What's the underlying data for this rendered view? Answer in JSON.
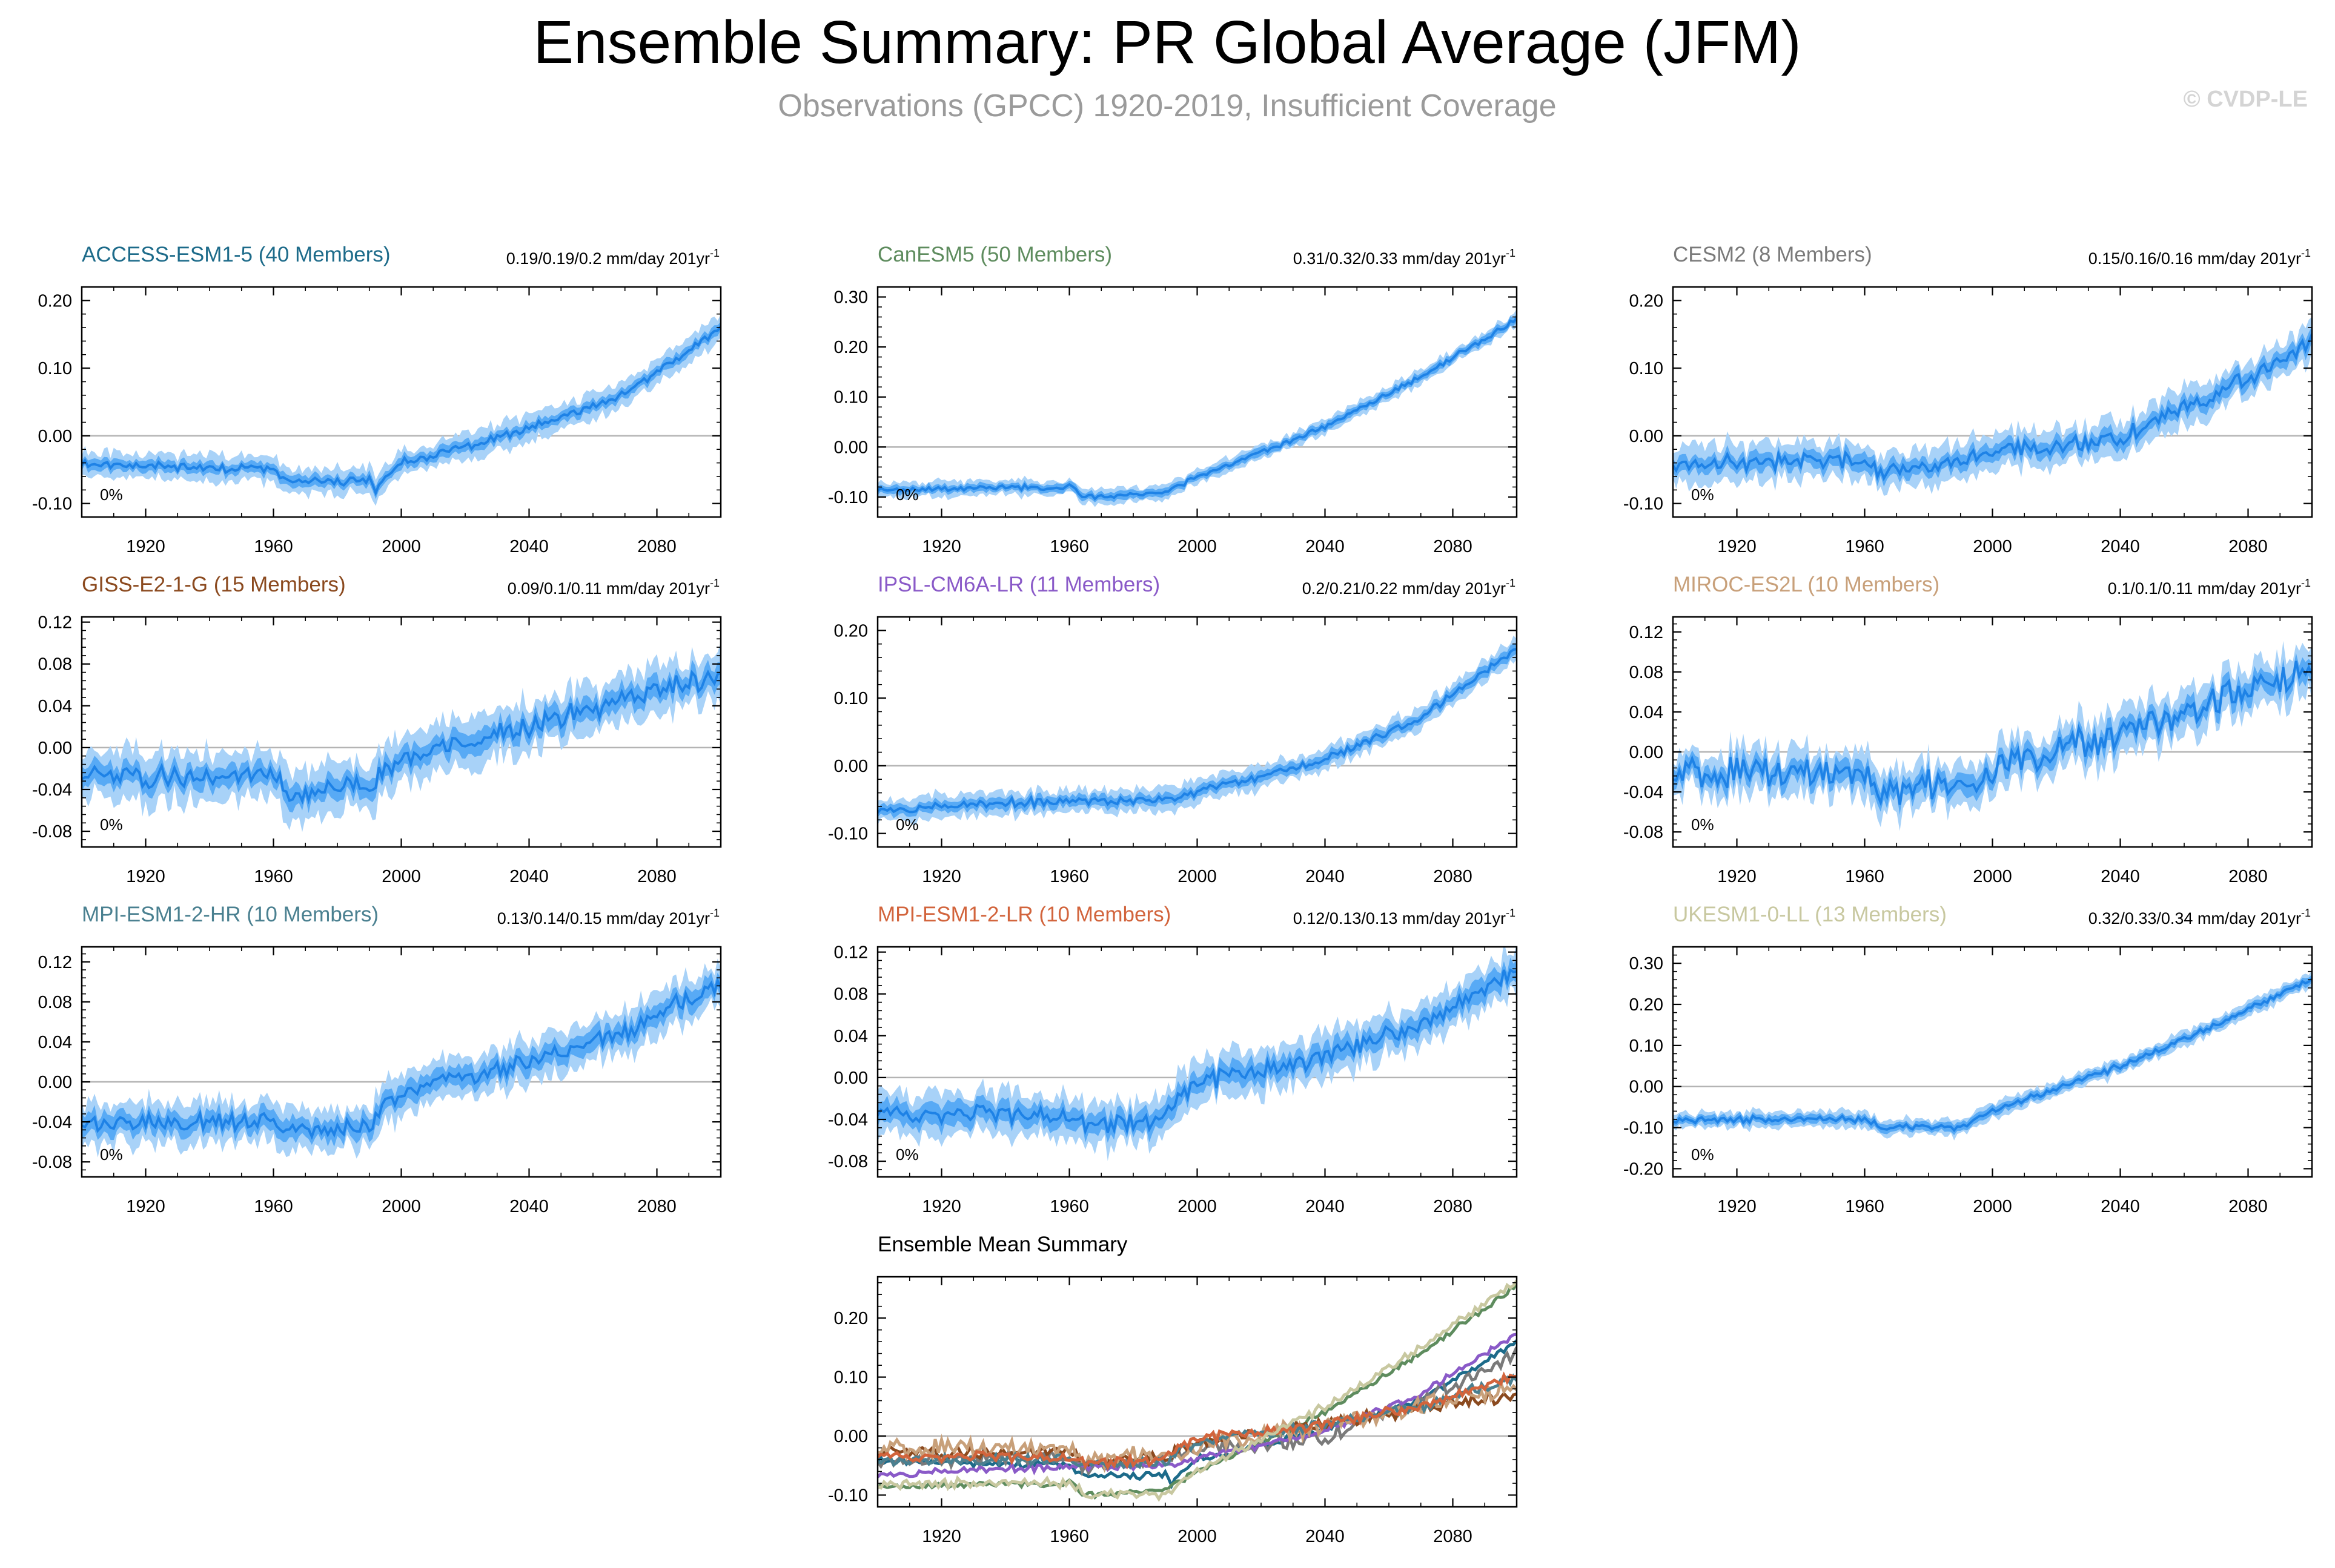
{
  "figure": {
    "title": "Ensemble Summary: PR Global Average (JFM)",
    "subtitle": "Observations (GPCC) 1920-2019, Insufficient Coverage",
    "watermark": "© CVDP-LE"
  },
  "colors": {
    "band_outer": "#a8d2f8",
    "band_inner": "#58aaf5",
    "mean_line": "#1e82e6",
    "zero_line": "#b4b4b4",
    "axis": "#000000"
  },
  "chart_data": [
    {
      "type": "area",
      "title": "ACCESS-ESM1-5 (40 Members)",
      "title_color": "#1d6b8a",
      "trend_label": "0.19/0.19/0.2 mm/day 201yr",
      "trend_sup": "-1",
      "pct_label": "0%",
      "x_range": [
        1900,
        2100
      ],
      "ylim": [
        -0.12,
        0.22
      ],
      "yticks": [
        -0.1,
        0.0,
        0.1,
        0.2
      ],
      "ytick_labels": [
        "-0.10",
        "0.00",
        "0.10",
        "0.20"
      ],
      "xticks": [
        1920,
        1960,
        2000,
        2040,
        2080
      ],
      "xtick_labels": [
        "1920",
        "1960",
        "2000",
        "2040",
        "2080"
      ],
      "mean_knots": [
        [
          1900,
          -0.04
        ],
        [
          1960,
          -0.05
        ],
        [
          1965,
          -0.07
        ],
        [
          1990,
          -0.065
        ],
        [
          1992,
          -0.08
        ],
        [
          2000,
          -0.04
        ],
        [
          2040,
          0.01
        ],
        [
          2070,
          0.06
        ],
        [
          2100,
          0.16
        ]
      ],
      "spread": [
        0.008,
        0.018
      ],
      "noise": 0.005,
      "seed": 11
    },
    {
      "type": "area",
      "title": "CanESM5 (50 Members)",
      "title_color": "#5e8c5e",
      "trend_label": "0.31/0.32/0.33 mm/day 201yr",
      "trend_sup": "-1",
      "pct_label": "0%",
      "x_range": [
        1900,
        2100
      ],
      "ylim": [
        -0.14,
        0.32
      ],
      "yticks": [
        -0.1,
        0.0,
        0.1,
        0.2,
        0.3
      ],
      "ytick_labels": [
        "-0.10",
        "0.00",
        "0.10",
        "0.20",
        "0.30"
      ],
      "xticks": [
        1920,
        1960,
        2000,
        2040,
        2080
      ],
      "xtick_labels": [
        "1920",
        "1960",
        "2000",
        "2040",
        "2080"
      ],
      "mean_knots": [
        [
          1900,
          -0.085
        ],
        [
          1960,
          -0.08
        ],
        [
          1965,
          -0.1
        ],
        [
          1990,
          -0.09
        ],
        [
          2000,
          -0.06
        ],
        [
          2040,
          0.04
        ],
        [
          2070,
          0.14
        ],
        [
          2100,
          0.255
        ]
      ],
      "spread": [
        0.008,
        0.014
      ],
      "noise": 0.004,
      "seed": 23
    },
    {
      "type": "area",
      "title": "CESM2 (8 Members)",
      "title_color": "#7a7a7a",
      "trend_label": "0.15/0.16/0.16 mm/day 201yr",
      "trend_sup": "-1",
      "pct_label": "0%",
      "x_range": [
        1900,
        2100
      ],
      "ylim": [
        -0.12,
        0.22
      ],
      "yticks": [
        -0.1,
        0.0,
        0.1,
        0.2
      ],
      "ytick_labels": [
        "-0.10",
        "0.00",
        "0.10",
        "0.20"
      ],
      "xticks": [
        1920,
        1960,
        2000,
        2040,
        2080
      ],
      "xtick_labels": [
        "1920",
        "1960",
        "2000",
        "2040",
        "2080"
      ],
      "mean_knots": [
        [
          1900,
          -0.04
        ],
        [
          1960,
          -0.035
        ],
        [
          1965,
          -0.055
        ],
        [
          1990,
          -0.04
        ],
        [
          2000,
          -0.025
        ],
        [
          2040,
          0.0
        ],
        [
          2070,
          0.06
        ],
        [
          2100,
          0.14
        ]
      ],
      "spread": [
        0.012,
        0.025
      ],
      "noise": 0.01,
      "seed": 37
    },
    {
      "type": "area",
      "title": "GISS-E2-1-G (15 Members)",
      "title_color": "#8b4a1f",
      "trend_label": "0.09/0.1/0.11 mm/day 201yr",
      "trend_sup": "-1",
      "pct_label": "0%",
      "x_range": [
        1900,
        2100
      ],
      "ylim": [
        -0.095,
        0.125
      ],
      "yticks": [
        -0.08,
        -0.04,
        0.0,
        0.04,
        0.08,
        0.12
      ],
      "ytick_labels": [
        "-0.08",
        "-0.04",
        "0.00",
        "0.04",
        "0.08",
        "0.12"
      ],
      "xticks": [
        1920,
        1960,
        2000,
        2040,
        2080
      ],
      "xtick_labels": [
        "1920",
        "1960",
        "2000",
        "2040",
        "2080"
      ],
      "mean_knots": [
        [
          1900,
          -0.03
        ],
        [
          1960,
          -0.025
        ],
        [
          1965,
          -0.045
        ],
        [
          1990,
          -0.035
        ],
        [
          2000,
          -0.01
        ],
        [
          2040,
          0.02
        ],
        [
          2070,
          0.045
        ],
        [
          2100,
          0.07
        ]
      ],
      "spread": [
        0.01,
        0.022
      ],
      "noise": 0.008,
      "seed": 41
    },
    {
      "type": "area",
      "title": "IPSL-CM6A-LR (11 Members)",
      "title_color": "#8a5ac8",
      "trend_label": "0.2/0.21/0.22 mm/day 201yr",
      "trend_sup": "-1",
      "pct_label": "0%",
      "x_range": [
        1900,
        2100
      ],
      "ylim": [
        -0.12,
        0.22
      ],
      "yticks": [
        -0.1,
        0.0,
        0.1,
        0.2
      ],
      "ytick_labels": [
        "-0.10",
        "0.00",
        "0.10",
        "0.20"
      ],
      "xticks": [
        1920,
        1960,
        2000,
        2040,
        2080
      ],
      "xtick_labels": [
        "1920",
        "1960",
        "2000",
        "2040",
        "2080"
      ],
      "mean_knots": [
        [
          1900,
          -0.065
        ],
        [
          1940,
          -0.055
        ],
        [
          1990,
          -0.05
        ],
        [
          2000,
          -0.04
        ],
        [
          2040,
          0.01
        ],
        [
          2070,
          0.07
        ],
        [
          2100,
          0.175
        ]
      ],
      "spread": [
        0.008,
        0.016
      ],
      "noise": 0.005,
      "seed": 53
    },
    {
      "type": "area",
      "title": "MIROC-ES2L (10 Members)",
      "title_color": "#c8a07a",
      "trend_label": "0.1/0.1/0.11 mm/day 201yr",
      "trend_sup": "-1",
      "pct_label": "0%",
      "x_range": [
        1900,
        2100
      ],
      "ylim": [
        -0.095,
        0.135
      ],
      "yticks": [
        -0.08,
        -0.04,
        0.0,
        0.04,
        0.08,
        0.12
      ],
      "ytick_labels": [
        "-0.08",
        "-0.04",
        "0.00",
        "0.04",
        "0.08",
        "0.12"
      ],
      "xticks": [
        1920,
        1960,
        2000,
        2040,
        2080
      ],
      "xtick_labels": [
        "1920",
        "1960",
        "2000",
        "2040",
        "2080"
      ],
      "mean_knots": [
        [
          1900,
          -0.02
        ],
        [
          1960,
          -0.02
        ],
        [
          1965,
          -0.04
        ],
        [
          1990,
          -0.03
        ],
        [
          2000,
          -0.015
        ],
        [
          2040,
          0.02
        ],
        [
          2070,
          0.05
        ],
        [
          2100,
          0.08
        ]
      ],
      "spread": [
        0.01,
        0.02
      ],
      "noise": 0.012,
      "seed": 67
    },
    {
      "type": "area",
      "title": "MPI-ESM1-2-HR (10 Members)",
      "title_color": "#4a8090",
      "trend_label": "0.13/0.14/0.15 mm/day 201yr",
      "trend_sup": "-1",
      "pct_label": "0%",
      "x_range": [
        1900,
        2100
      ],
      "ylim": [
        -0.095,
        0.135
      ],
      "yticks": [
        -0.08,
        -0.04,
        0.0,
        0.04,
        0.08,
        0.12
      ],
      "ytick_labels": [
        "-0.08",
        "-0.04",
        "0.00",
        "0.04",
        "0.08",
        "0.12"
      ],
      "xticks": [
        1920,
        1960,
        2000,
        2040,
        2080
      ],
      "xtick_labels": [
        "1920",
        "1960",
        "2000",
        "2040",
        "2080"
      ],
      "mean_knots": [
        [
          1900,
          -0.04
        ],
        [
          1960,
          -0.04
        ],
        [
          1965,
          -0.05
        ],
        [
          1990,
          -0.045
        ],
        [
          1995,
          -0.02
        ],
        [
          2000,
          -0.01
        ],
        [
          2040,
          0.02
        ],
        [
          2070,
          0.05
        ],
        [
          2100,
          0.1
        ]
      ],
      "spread": [
        0.01,
        0.02
      ],
      "noise": 0.007,
      "seed": 79
    },
    {
      "type": "area",
      "title": "MPI-ESM1-2-LR (10 Members)",
      "title_color": "#d2643c",
      "trend_label": "0.12/0.13/0.13 mm/day 201yr",
      "trend_sup": "-1",
      "pct_label": "0%",
      "x_range": [
        1900,
        2100
      ],
      "ylim": [
        -0.095,
        0.125
      ],
      "yticks": [
        -0.08,
        -0.04,
        0.0,
        0.04,
        0.08,
        0.12
      ],
      "ytick_labels": [
        "-0.08",
        "-0.04",
        "0.00",
        "0.04",
        "0.08",
        "0.12"
      ],
      "xticks": [
        1920,
        1960,
        2000,
        2040,
        2080
      ],
      "xtick_labels": [
        "1920",
        "1960",
        "2000",
        "2040",
        "2080"
      ],
      "mean_knots": [
        [
          1900,
          -0.035
        ],
        [
          1960,
          -0.035
        ],
        [
          1965,
          -0.045
        ],
        [
          1990,
          -0.04
        ],
        [
          1995,
          -0.015
        ],
        [
          2000,
          -0.005
        ],
        [
          2040,
          0.02
        ],
        [
          2070,
          0.05
        ],
        [
          2100,
          0.1
        ]
      ],
      "spread": [
        0.01,
        0.02
      ],
      "noise": 0.007,
      "seed": 83
    },
    {
      "type": "area",
      "title": "UKESM1-0-LL (13 Members)",
      "title_color": "#c8c8a0",
      "trend_label": "0.32/0.33/0.34 mm/day 201yr",
      "trend_sup": "-1",
      "pct_label": "0%",
      "x_range": [
        1900,
        2100
      ],
      "ylim": [
        -0.22,
        0.34
      ],
      "yticks": [
        -0.2,
        -0.1,
        0.0,
        0.1,
        0.2,
        0.3
      ],
      "ytick_labels": [
        "-0.20",
        "-0.10",
        "0.00",
        "0.10",
        "0.20",
        "0.30"
      ],
      "xticks": [
        1920,
        1960,
        2000,
        2040,
        2080
      ],
      "xtick_labels": [
        "1920",
        "1960",
        "2000",
        "2040",
        "2080"
      ],
      "mean_knots": [
        [
          1900,
          -0.08
        ],
        [
          1960,
          -0.08
        ],
        [
          1965,
          -0.1
        ],
        [
          1990,
          -0.1
        ],
        [
          2000,
          -0.06
        ],
        [
          2040,
          0.05
        ],
        [
          2070,
          0.15
        ],
        [
          2100,
          0.26
        ]
      ],
      "spread": [
        0.01,
        0.018
      ],
      "noise": 0.006,
      "seed": 97
    },
    {
      "type": "line",
      "title": "Ensemble Mean Summary",
      "title_color": "#000000",
      "x_range": [
        1900,
        2100
      ],
      "ylim": [
        -0.12,
        0.27
      ],
      "yticks": [
        -0.1,
        0.0,
        0.1,
        0.2
      ],
      "ytick_labels": [
        "-0.10",
        "0.00",
        "0.10",
        "0.20"
      ],
      "xticks": [
        1920,
        1960,
        2000,
        2040,
        2080
      ],
      "xtick_labels": [
        "1920",
        "1960",
        "2000",
        "2040",
        "2080"
      ],
      "series": [
        {
          "name": "ACCESS-ESM1-5",
          "color": "#1d6b8a",
          "from": 0
        },
        {
          "name": "CanESM5",
          "color": "#5e8c5e",
          "from": 1
        },
        {
          "name": "CESM2",
          "color": "#7a7a7a",
          "from": 2
        },
        {
          "name": "GISS-E2-1-G",
          "color": "#8b4a1f",
          "from": 3
        },
        {
          "name": "IPSL-CM6A-LR",
          "color": "#8a5ac8",
          "from": 4
        },
        {
          "name": "MIROC-ES2L",
          "color": "#c8a07a",
          "from": 5
        },
        {
          "name": "MPI-ESM1-2-HR",
          "color": "#4a8090",
          "from": 6
        },
        {
          "name": "MPI-ESM1-2-LR",
          "color": "#d2643c",
          "from": 7
        },
        {
          "name": "UKESM1-0-LL",
          "color": "#c8c8a0",
          "from": 8
        }
      ]
    }
  ]
}
